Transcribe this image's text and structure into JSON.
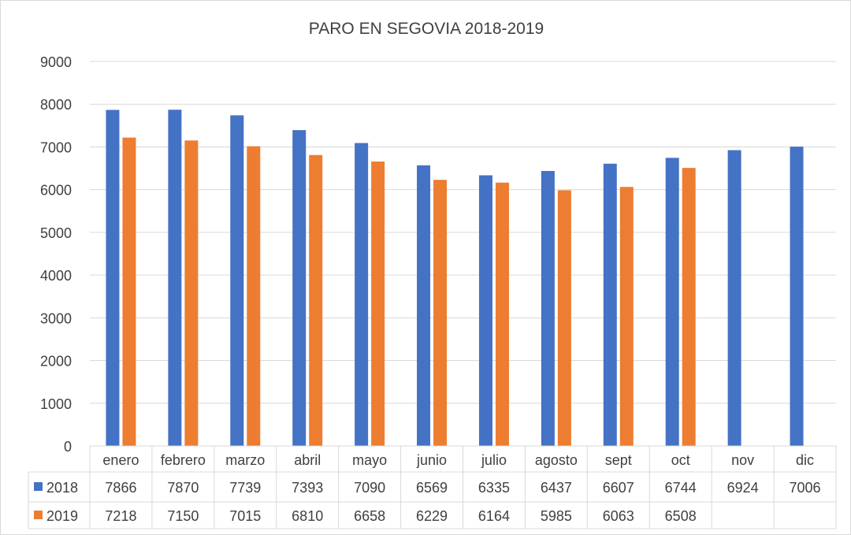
{
  "chart_data": {
    "type": "bar",
    "title": "PARO EN SEGOVIA 2018-2019",
    "categories": [
      "enero",
      "febrero",
      "marzo",
      "abril",
      "mayo",
      "junio",
      "julio",
      "agosto",
      "sept",
      "oct",
      "nov",
      "dic"
    ],
    "series": [
      {
        "name": "2018",
        "color": "#4472C4",
        "values": [
          7866,
          7870,
          7739,
          7393,
          7090,
          6569,
          6335,
          6437,
          6607,
          6744,
          6924,
          7006
        ]
      },
      {
        "name": "2019",
        "color": "#ED7D31",
        "values": [
          7218,
          7150,
          7015,
          6810,
          6658,
          6229,
          6164,
          5985,
          6063,
          6508,
          null,
          null
        ]
      }
    ],
    "ylim": [
      0,
      9000
    ],
    "yticks": [
      0,
      1000,
      2000,
      3000,
      4000,
      5000,
      6000,
      7000,
      8000,
      9000
    ],
    "grid": true,
    "legend": "data-table"
  }
}
